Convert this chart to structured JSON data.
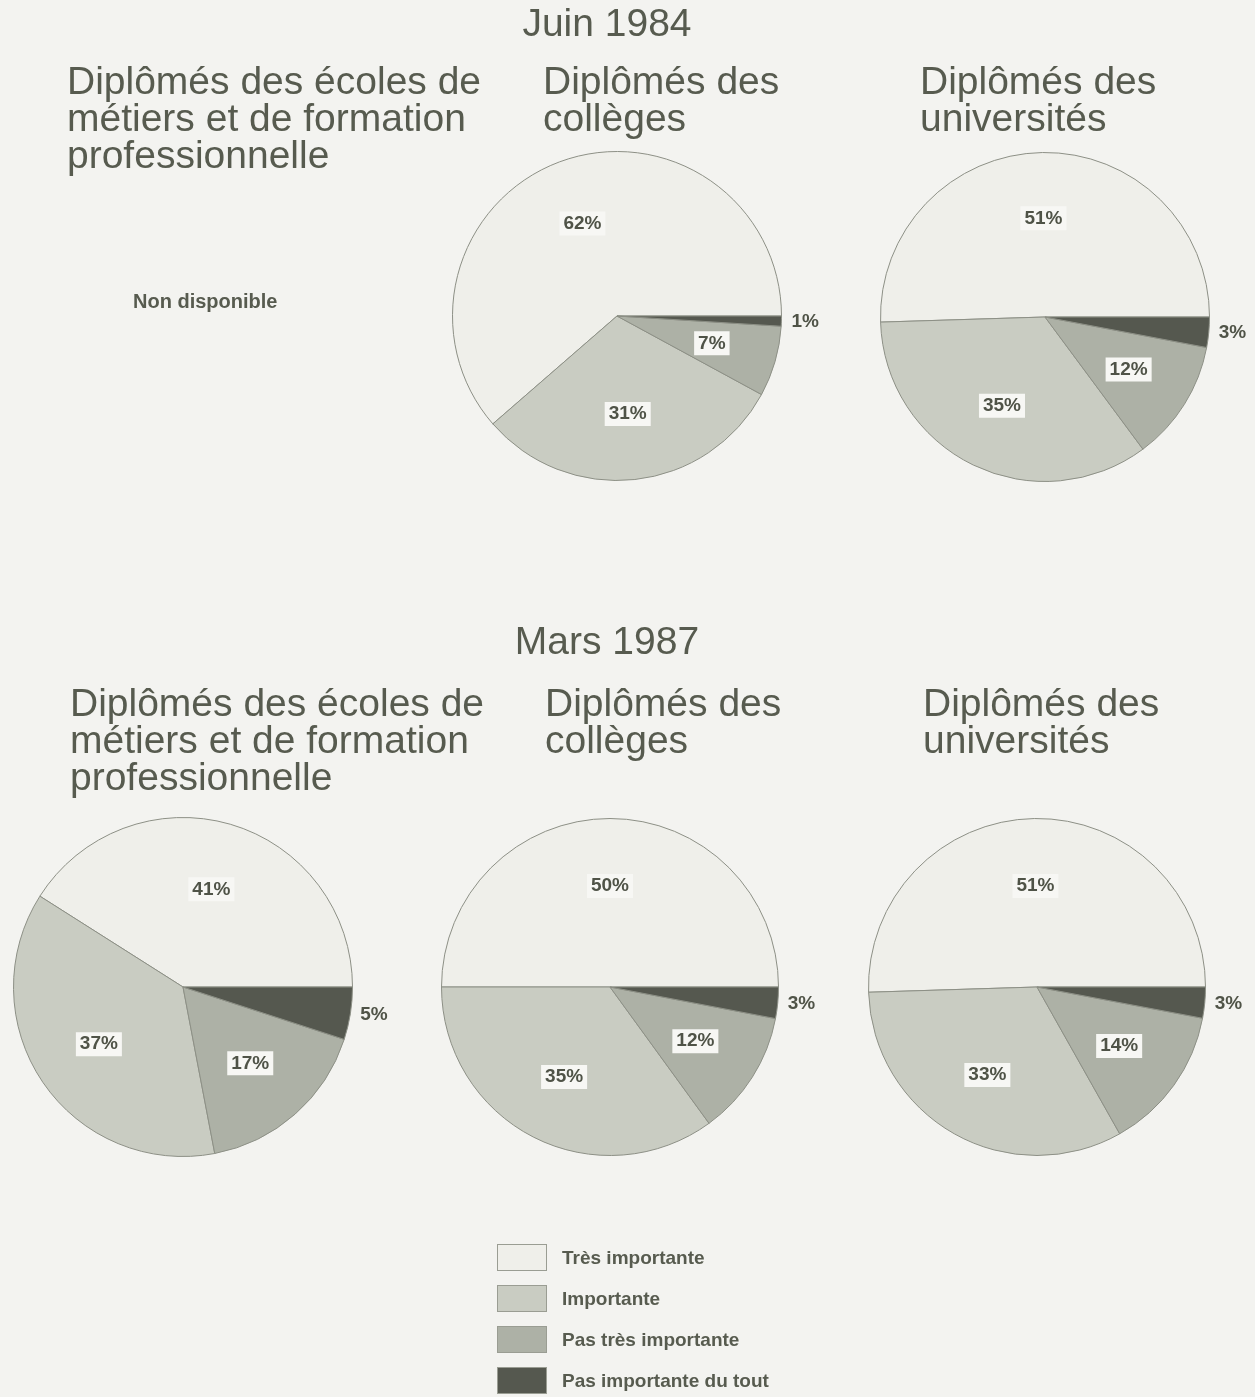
{
  "chart_data": [
    {
      "type": "other",
      "title": "Juin 1984"
    },
    {
      "type": "other",
      "title": "Diplômés des écoles de métiers et de formation professionnelle",
      "annotations": [
        "Non disponible"
      ]
    },
    {
      "type": "pie",
      "title": "Diplômés des collèges",
      "categories": [
        "Très importante",
        "Importante",
        "Pas très importante",
        "Pas importante du tout"
      ],
      "values": [
        62,
        31,
        7,
        1
      ],
      "colors": [
        "#efefea",
        "#c9ccc2",
        "#adb1a6",
        "#55584f"
      ],
      "value_labels": [
        "62%",
        "31%",
        "7%",
        "1%"
      ],
      "legend": "bottom"
    },
    {
      "type": "pie",
      "title": "Diplômés des universités",
      "categories": [
        null,
        null,
        null,
        null
      ],
      "values": [
        51,
        35,
        12,
        3
      ],
      "colors": [
        "#efefea",
        "#c9ccc2",
        "#adb1a6",
        "#55584f"
      ],
      "value_labels": [
        "51%",
        "35%",
        "12%",
        "3%"
      ]
    },
    {
      "type": "other",
      "title": "Mars 1987"
    },
    {
      "type": "pie",
      "title": "Diplômés des écoles de métiers et de formation professionnelle",
      "categories": [
        null,
        null,
        null,
        null
      ],
      "values": [
        41,
        37,
        17,
        5
      ],
      "colors": [
        "#efefea",
        "#c9ccc2",
        "#adb1a6",
        "#55584f"
      ],
      "value_labels": [
        "41%",
        "37%",
        "17%",
        "5%"
      ]
    },
    {
      "type": "pie",
      "title": "Diplômés des collèges",
      "categories": [
        null,
        null,
        null,
        null
      ],
      "values": [
        50,
        35,
        12,
        3
      ],
      "colors": [
        "#efefea",
        "#c9ccc2",
        "#adb1a6",
        "#55584f"
      ],
      "value_labels": [
        "50%",
        "35%",
        "12%",
        "3%"
      ]
    },
    {
      "type": "pie",
      "title": "Diplômés des universités",
      "categories": [
        null,
        null,
        null,
        null
      ],
      "values": [
        51,
        33,
        14,
        3
      ],
      "colors": [
        "#efefea",
        "#c9ccc2",
        "#adb1a6",
        "#55584f"
      ],
      "value_labels": [
        "51%",
        "33%",
        "14%",
        "3%"
      ]
    }
  ]
}
